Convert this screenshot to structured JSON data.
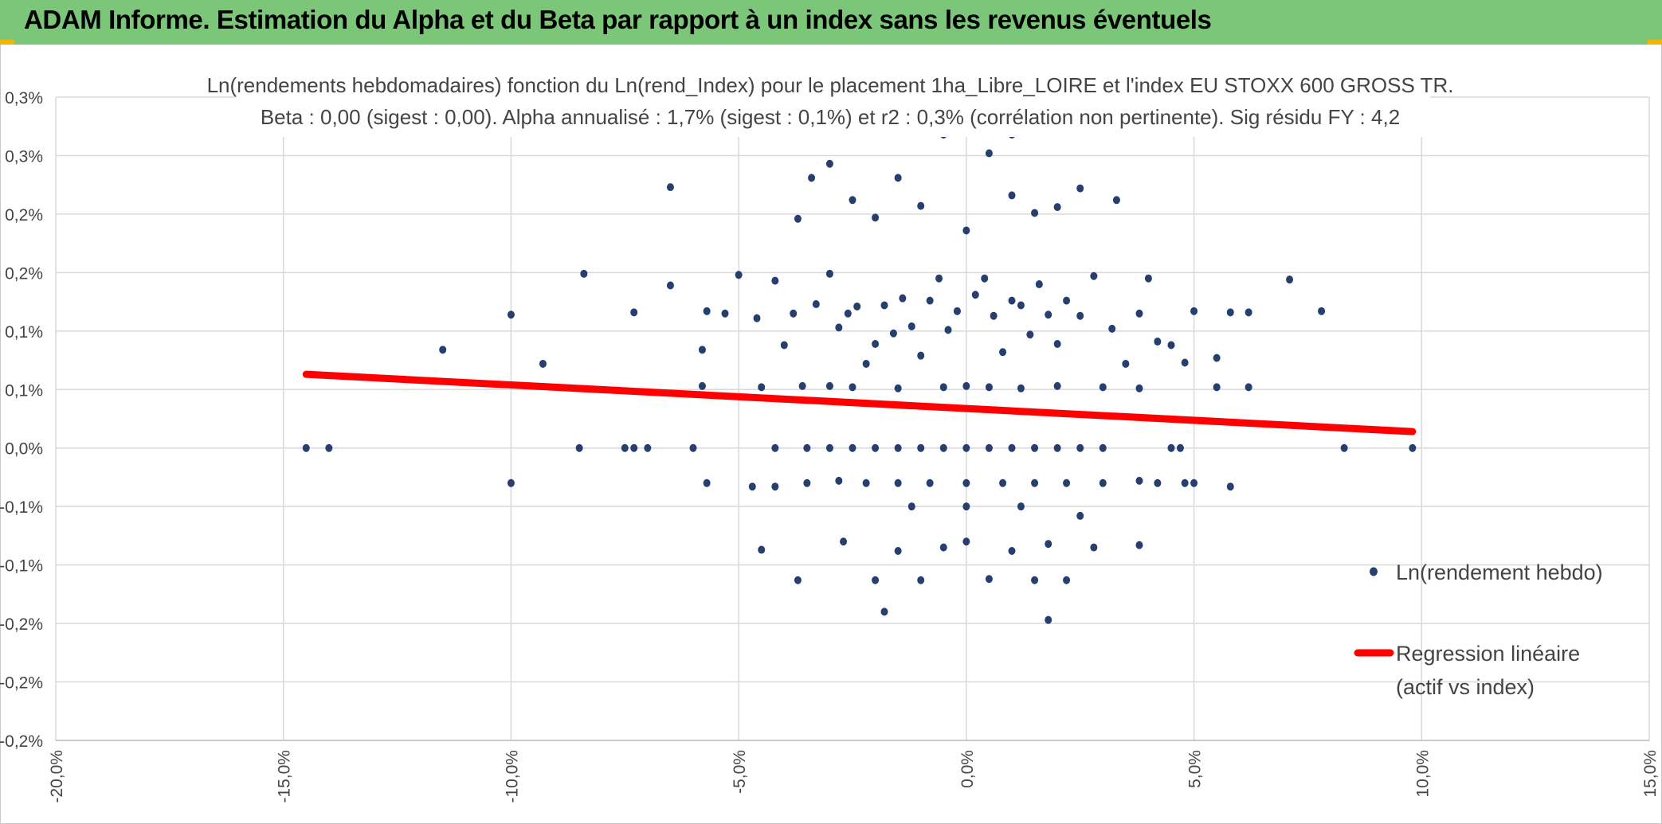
{
  "header": {
    "title": "ADAM Informe. Estimation du Alpha et du Beta par rapport à un index sans les revenus éventuels"
  },
  "colors": {
    "header_bg": "#7cc67a",
    "points": "#263f6e",
    "regression": "#ff0000",
    "grid": "#d9d9d9",
    "accent": "#f2b600"
  },
  "chart_data": {
    "type": "scatter",
    "title": "Ln(rendements hebdomadaires) fonction du Ln(rend_Index) pour le placement 1ha_Libre_LOIRE et l'index EU STOXX 600 GROSS TR.",
    "subtitle": "Beta : 0,00 (sigest : 0,00). Alpha annualisé : 1,7% (sigest : 0,1%) et r2 : 0,3% (corrélation non pertinente). Sig résidu FY : 4,2",
    "xlabel": "",
    "ylabel": "",
    "xlim": [
      -0.2,
      0.15
    ],
    "ylim": [
      -0.0025,
      0.003
    ],
    "x_ticks": [
      -0.2,
      -0.15,
      -0.1,
      -0.05,
      0.0,
      0.05,
      0.1,
      0.15
    ],
    "x_tick_labels": [
      "-20,0%",
      "-15,0%",
      "-10,0%",
      "-5,0%",
      "0,0%",
      "5,0%",
      "10,0%",
      "15,0%"
    ],
    "y_ticks": [
      0.003,
      0.0025,
      0.002,
      0.0015,
      0.001,
      0.0005,
      0.0,
      -0.0005,
      -0.001,
      -0.0015,
      -0.002,
      -0.0025
    ],
    "y_tick_labels": [
      "0,3%",
      "0,3%",
      "0,2%",
      "0,2%",
      "0,1%",
      "0,1%",
      "0,0%",
      "-0,1%",
      "-0,1%",
      "-0,2%",
      "-0,2%",
      "-0,2%"
    ],
    "grid": true,
    "legend_position": "right",
    "series": [
      {
        "name": "Ln(rendement hebdo)",
        "kind": "scatter",
        "points": [
          [
            -0.145,
            0
          ],
          [
            -0.14,
            0
          ],
          [
            -0.085,
            0
          ],
          [
            -0.075,
            0
          ],
          [
            -0.073,
            0
          ],
          [
            -0.07,
            0
          ],
          [
            -0.06,
            0
          ],
          [
            -0.042,
            0
          ],
          [
            -0.035,
            0
          ],
          [
            -0.03,
            0
          ],
          [
            -0.025,
            0
          ],
          [
            -0.02,
            0
          ],
          [
            -0.015,
            0
          ],
          [
            -0.01,
            0
          ],
          [
            -0.005,
            0
          ],
          [
            0.0,
            0
          ],
          [
            0.005,
            0
          ],
          [
            0.01,
            0
          ],
          [
            0.015,
            0
          ],
          [
            0.02,
            0
          ],
          [
            0.025,
            0
          ],
          [
            0.03,
            0
          ],
          [
            0.045,
            0
          ],
          [
            0.047,
            0
          ],
          [
            0.083,
            0
          ],
          [
            0.098,
            0
          ],
          [
            -0.1,
            0.00114
          ],
          [
            -0.093,
            0.00072
          ],
          [
            -0.115,
            0.00084
          ],
          [
            -0.084,
            0.00149
          ],
          [
            -0.073,
            0.00116
          ],
          [
            -0.065,
            0.00139
          ],
          [
            -0.058,
            0.00084
          ],
          [
            -0.057,
            0.00117
          ],
          [
            -0.053,
            0.00115
          ],
          [
            -0.05,
            0.00148
          ],
          [
            -0.046,
            0.00111
          ],
          [
            -0.042,
            0.00143
          ],
          [
            -0.04,
            0.00088
          ],
          [
            -0.038,
            0.00115
          ],
          [
            -0.036,
            0.00053
          ],
          [
            -0.033,
            0.00123
          ],
          [
            -0.03,
            0.00149
          ],
          [
            -0.028,
            0.00103
          ],
          [
            -0.026,
            0.00115
          ],
          [
            -0.024,
            0.00121
          ],
          [
            -0.022,
            0.00072
          ],
          [
            -0.02,
            0.00089
          ],
          [
            -0.018,
            0.00122
          ],
          [
            -0.016,
            0.00098
          ],
          [
            -0.014,
            0.00128
          ],
          [
            -0.012,
            0.00104
          ],
          [
            -0.01,
            0.00079
          ],
          [
            -0.008,
            0.00126
          ],
          [
            -0.006,
            0.00145
          ],
          [
            -0.004,
            0.00101
          ],
          [
            -0.002,
            0.00117
          ],
          [
            0.002,
            0.00131
          ],
          [
            0.004,
            0.00145
          ],
          [
            0.006,
            0.00113
          ],
          [
            0.008,
            0.00082
          ],
          [
            0.01,
            0.00126
          ],
          [
            0.012,
            0.00122
          ],
          [
            0.014,
            0.00097
          ],
          [
            0.016,
            0.0014
          ],
          [
            0.018,
            0.00114
          ],
          [
            0.02,
            0.00089
          ],
          [
            0.022,
            0.00126
          ],
          [
            0.025,
            0.00113
          ],
          [
            0.028,
            0.00147
          ],
          [
            0.032,
            0.00102
          ],
          [
            0.035,
            0.00072
          ],
          [
            0.038,
            0.00115
          ],
          [
            0.04,
            0.00145
          ],
          [
            0.042,
            0.00091
          ],
          [
            0.045,
            0.00088
          ],
          [
            0.048,
            0.00073
          ],
          [
            0.05,
            0.00117
          ],
          [
            0.055,
            0.00077
          ],
          [
            0.058,
            0.00116
          ],
          [
            0.062,
            0.00116
          ],
          [
            0.071,
            0.00144
          ],
          [
            0.078,
            0.00117
          ],
          [
            -0.058,
            0.00053
          ],
          [
            -0.045,
            0.00052
          ],
          [
            -0.03,
            0.00053
          ],
          [
            -0.025,
            0.00052
          ],
          [
            -0.015,
            0.00051
          ],
          [
            -0.005,
            0.00052
          ],
          [
            0.0,
            0.00053
          ],
          [
            0.005,
            0.00052
          ],
          [
            0.012,
            0.00051
          ],
          [
            0.02,
            0.00053
          ],
          [
            0.03,
            0.00052
          ],
          [
            0.038,
            0.00051
          ],
          [
            0.055,
            0.00052
          ],
          [
            0.062,
            0.00052
          ],
          [
            -0.1,
            -0.0003
          ],
          [
            -0.057,
            -0.0003
          ],
          [
            -0.047,
            -0.00033
          ],
          [
            -0.042,
            -0.00033
          ],
          [
            -0.035,
            -0.0003
          ],
          [
            -0.028,
            -0.00028
          ],
          [
            -0.022,
            -0.0003
          ],
          [
            -0.015,
            -0.0003
          ],
          [
            -0.008,
            -0.0003
          ],
          [
            0.0,
            -0.0003
          ],
          [
            0.008,
            -0.0003
          ],
          [
            0.015,
            -0.0003
          ],
          [
            0.022,
            -0.0003
          ],
          [
            0.03,
            -0.0003
          ],
          [
            0.038,
            -0.00028
          ],
          [
            0.042,
            -0.0003
          ],
          [
            0.048,
            -0.0003
          ],
          [
            0.05,
            -0.0003
          ],
          [
            0.058,
            -0.00033
          ],
          [
            -0.045,
            -0.00087
          ],
          [
            -0.037,
            -0.00113
          ],
          [
            -0.027,
            -0.0008
          ],
          [
            -0.02,
            -0.00113
          ],
          [
            -0.015,
            -0.00088
          ],
          [
            -0.01,
            -0.00113
          ],
          [
            -0.005,
            -0.00085
          ],
          [
            0.0,
            -0.0008
          ],
          [
            0.005,
            -0.00112
          ],
          [
            0.01,
            -0.00088
          ],
          [
            0.015,
            -0.00113
          ],
          [
            0.018,
            -0.00082
          ],
          [
            0.022,
            -0.00113
          ],
          [
            0.028,
            -0.00085
          ],
          [
            0.038,
            -0.00083
          ],
          [
            -0.018,
            -0.0014
          ],
          [
            0.018,
            -0.00147
          ],
          [
            0.0,
            -0.0005
          ],
          [
            -0.012,
            -0.0005
          ],
          [
            0.012,
            -0.0005
          ],
          [
            0.025,
            -0.00058
          ],
          [
            -0.037,
            0.00196
          ],
          [
            -0.034,
            0.00231
          ],
          [
            -0.03,
            0.00243
          ],
          [
            -0.025,
            0.00212
          ],
          [
            -0.02,
            0.00197
          ],
          [
            -0.015,
            0.00231
          ],
          [
            -0.01,
            0.00207
          ],
          [
            -0.005,
            0.00268
          ],
          [
            0.0,
            0.00186
          ],
          [
            0.005,
            0.00252
          ],
          [
            0.01,
            0.00216
          ],
          [
            0.015,
            0.00201
          ],
          [
            0.02,
            0.00206
          ],
          [
            0.025,
            0.00222
          ],
          [
            0.033,
            0.00212
          ],
          [
            -0.065,
            0.00223
          ],
          [
            -0.003,
            0.00271
          ],
          [
            0.01,
            0.00268
          ]
        ]
      },
      {
        "name": "Regression linéaire (actif vs index)",
        "kind": "line",
        "x": [
          -0.145,
          0.098
        ],
        "y": [
          0.00063,
          0.00014
        ]
      }
    ]
  }
}
